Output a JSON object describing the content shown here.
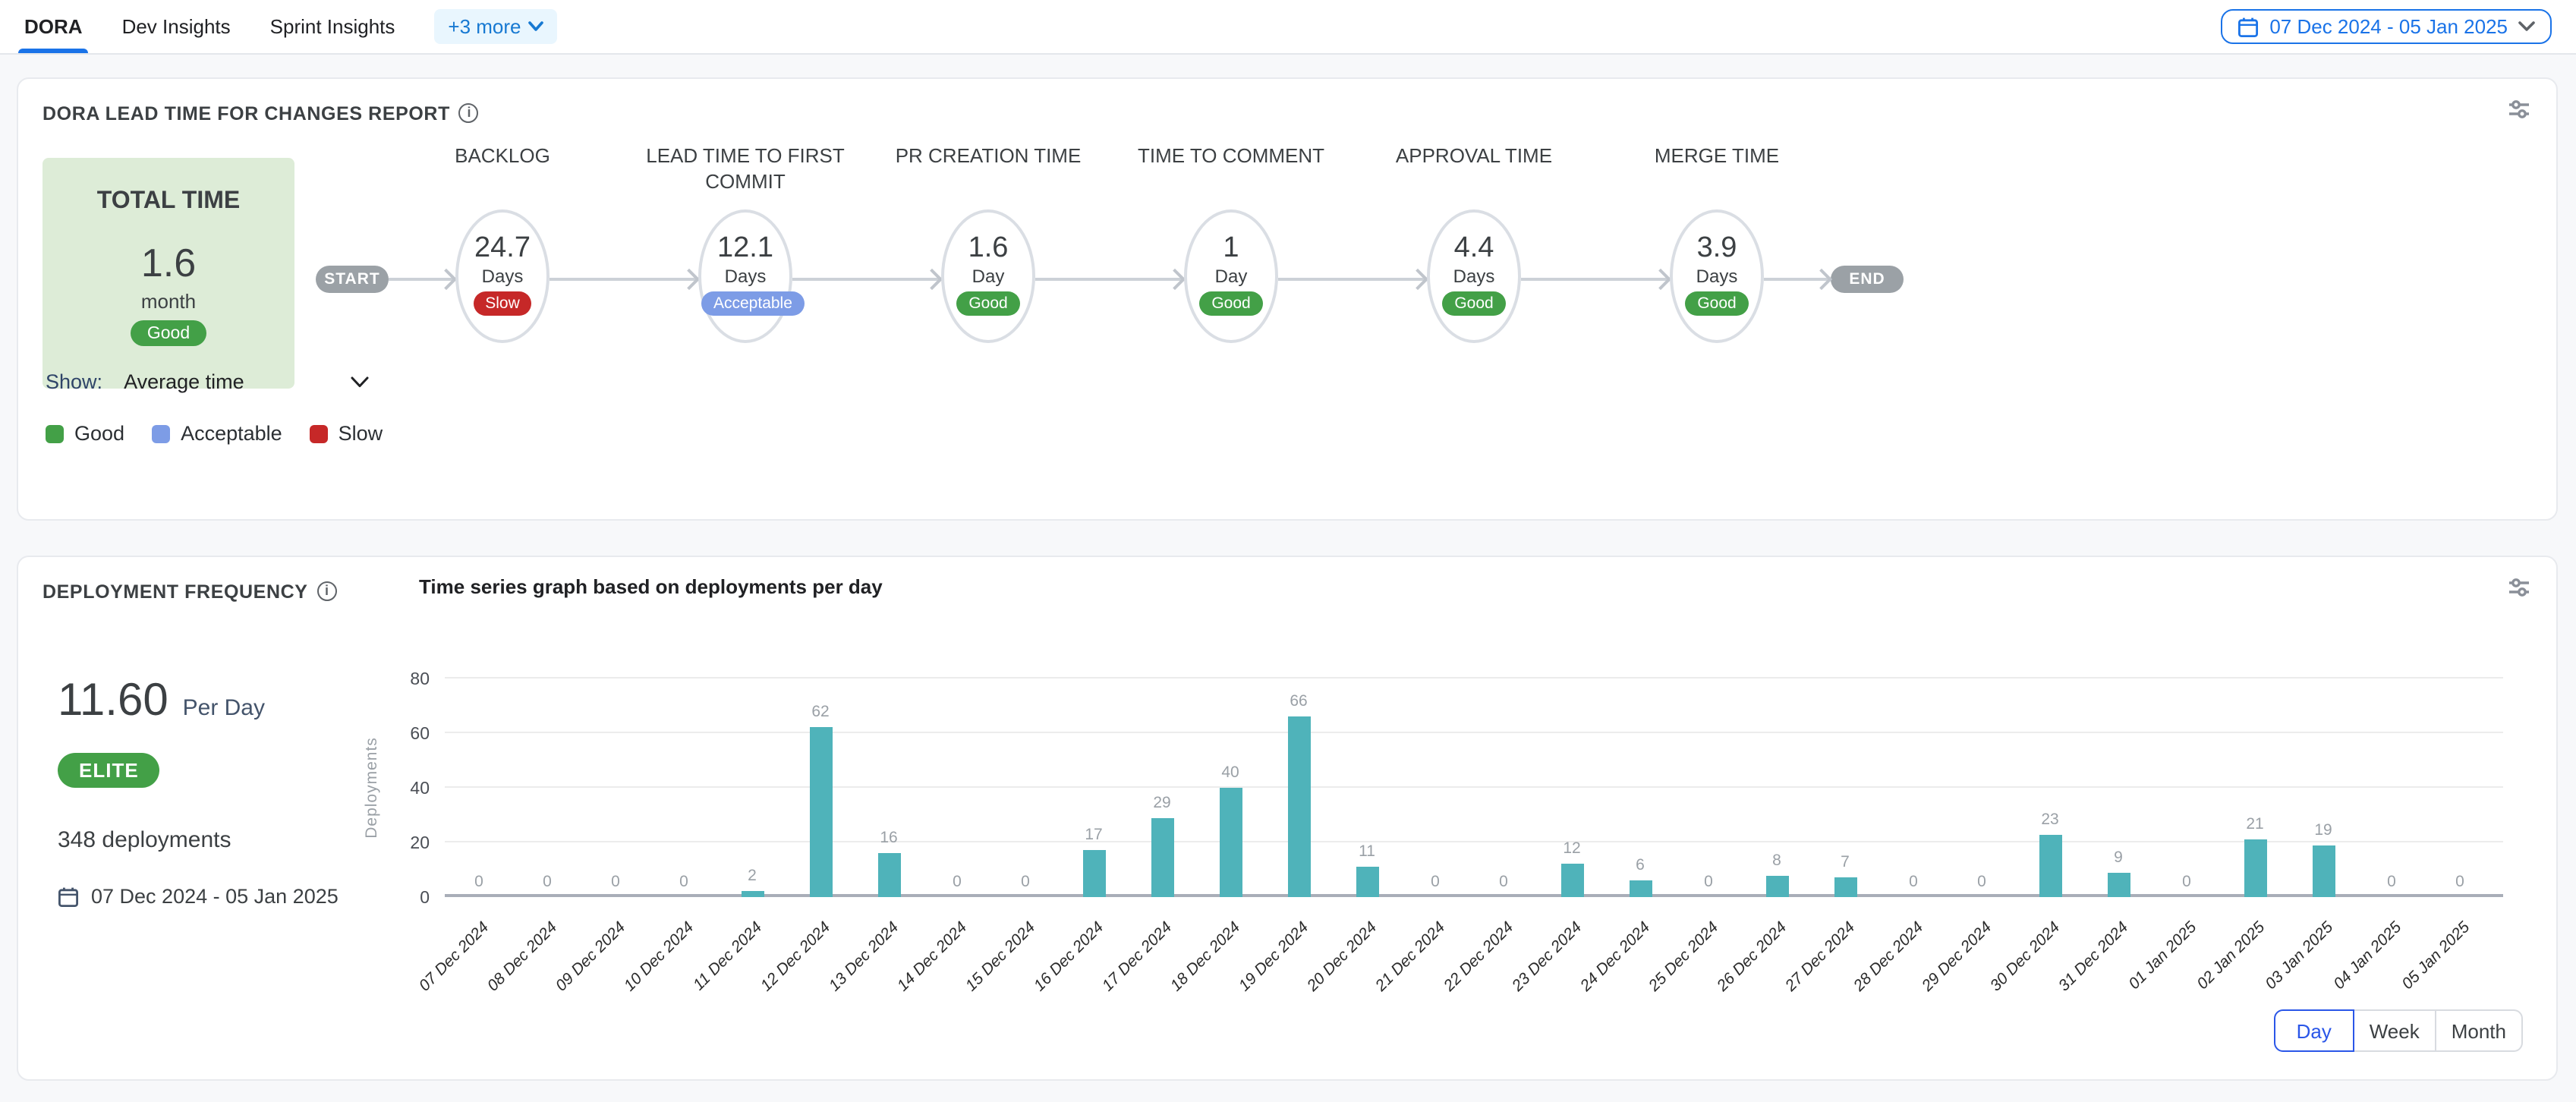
{
  "tabs": {
    "items": [
      {
        "label": "DORA",
        "active": true
      },
      {
        "label": "Dev Insights",
        "active": false
      },
      {
        "label": "Sprint Insights",
        "active": false
      }
    ],
    "more_label": "+3 more"
  },
  "date_range": "07 Dec 2024 - 05 Jan 2025",
  "lead_time": {
    "title": "DORA LEAD TIME FOR CHANGES REPORT",
    "total": {
      "label": "TOTAL TIME",
      "value": "1.6",
      "unit": "month",
      "status": "Good"
    },
    "start_label": "START",
    "end_label": "END",
    "show_label": "Show:",
    "show_value": "Average time",
    "stages": [
      {
        "title": "BACKLOG",
        "value": "24.7",
        "unit": "Days",
        "status": "Slow"
      },
      {
        "title": "LEAD TIME TO FIRST COMMIT",
        "value": "12.1",
        "unit": "Days",
        "status": "Acceptable"
      },
      {
        "title": "PR CREATION TIME",
        "value": "1.6",
        "unit": "Day",
        "status": "Good"
      },
      {
        "title": "TIME TO COMMENT",
        "value": "1",
        "unit": "Day",
        "status": "Good"
      },
      {
        "title": "APPROVAL TIME",
        "value": "4.4",
        "unit": "Days",
        "status": "Good"
      },
      {
        "title": "MERGE TIME",
        "value": "3.9",
        "unit": "Days",
        "status": "Good"
      }
    ],
    "legend": [
      {
        "label": "Good",
        "color": "#43a047"
      },
      {
        "label": "Acceptable",
        "color": "#7d9ce6"
      },
      {
        "label": "Slow",
        "color": "#c62828"
      }
    ]
  },
  "deployment": {
    "title": "DEPLOYMENT FREQUENCY",
    "subtitle": "Time series graph based on deployments per day",
    "rate": "11.60",
    "rate_unit": "Per Day",
    "tier": "ELITE",
    "total": "348 deployments",
    "date_range": "07 Dec 2024 - 05 Jan 2025",
    "granularity": [
      {
        "label": "Day",
        "active": true
      },
      {
        "label": "Week",
        "active": false
      },
      {
        "label": "Month",
        "active": false
      }
    ]
  },
  "chart_data": {
    "type": "bar",
    "title": "Time series graph based on deployments per day",
    "xlabel": "",
    "ylabel": "Deployments",
    "ylim": [
      0,
      80
    ],
    "yticks": [
      0,
      20,
      40,
      60,
      80
    ],
    "grid": true,
    "bar_color": "#4fb3ba",
    "categories": [
      "07 Dec 2024",
      "08 Dec 2024",
      "09 Dec 2024",
      "10 Dec 2024",
      "11 Dec 2024",
      "12 Dec 2024",
      "13 Dec 2024",
      "14 Dec 2024",
      "15 Dec 2024",
      "16 Dec 2024",
      "17 Dec 2024",
      "18 Dec 2024",
      "19 Dec 2024",
      "20 Dec 2024",
      "21 Dec 2024",
      "22 Dec 2024",
      "23 Dec 2024",
      "24 Dec 2024",
      "25 Dec 2024",
      "26 Dec 2024",
      "27 Dec 2024",
      "28 Dec 2024",
      "29 Dec 2024",
      "30 Dec 2024",
      "31 Dec 2024",
      "01 Jan 2025",
      "02 Jan 2025",
      "03 Jan 2025",
      "04 Jan 2025",
      "05 Jan 2025"
    ],
    "values": [
      0,
      0,
      0,
      0,
      2,
      62,
      16,
      0,
      0,
      17,
      29,
      40,
      66,
      11,
      0,
      0,
      12,
      6,
      0,
      8,
      7,
      0,
      0,
      23,
      9,
      0,
      21,
      19,
      0,
      0
    ]
  }
}
